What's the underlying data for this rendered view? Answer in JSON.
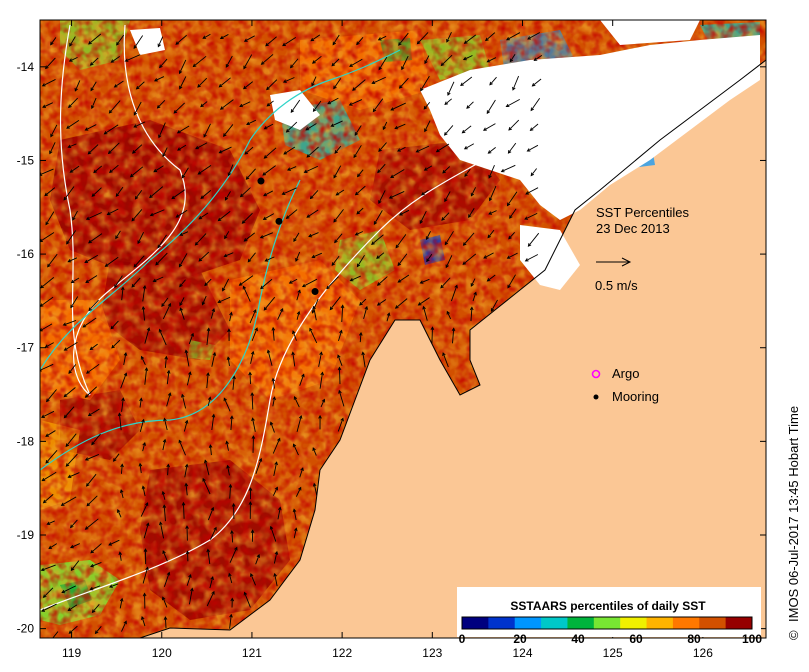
{
  "map": {
    "title_line1": "SST Percentiles",
    "title_line2": "23 Dec 2013",
    "lon_ticks": [
      "119",
      "120",
      "121",
      "122",
      "123",
      "124",
      "125",
      "126"
    ],
    "lat_ticks": [
      "-14",
      "-15",
      "-16",
      "-17",
      "-18",
      "-19",
      "-20"
    ],
    "lon_range": [
      118.65,
      126.7
    ],
    "lat_range": [
      -20.1,
      -13.5
    ],
    "velocity_scale_label": "0.5 m/s",
    "colors": {
      "land": "#fbc795",
      "no_data": "#ffffff",
      "coastline": "#000000",
      "isobath_white": "#ffffff",
      "isobath_cyan": "#2fd4c8",
      "argo": "#ff00ff",
      "mooring": "#000000"
    }
  },
  "legend": {
    "argo_label": "Argo",
    "mooring_label": "Mooring"
  },
  "colorbar": {
    "title": "SSTAARS percentiles of daily SST",
    "tick_labels": [
      "0",
      "20",
      "40",
      "60",
      "80",
      "100"
    ],
    "colors": [
      "#00007f",
      "#0033cc",
      "#0096ff",
      "#00c8c8",
      "#00b43c",
      "#78e632",
      "#f0f000",
      "#ffb400",
      "#ff7800",
      "#d25000",
      "#960000"
    ]
  },
  "credit": {
    "text": "IMOS 06-Jul-2017 13:45 Hobart Time",
    "symbol": "©"
  },
  "moorings": [
    {
      "lon": 121.1,
      "lat": -15.22
    },
    {
      "lon": 121.3,
      "lat": -15.65
    },
    {
      "lon": 121.7,
      "lat": -16.4
    }
  ]
}
